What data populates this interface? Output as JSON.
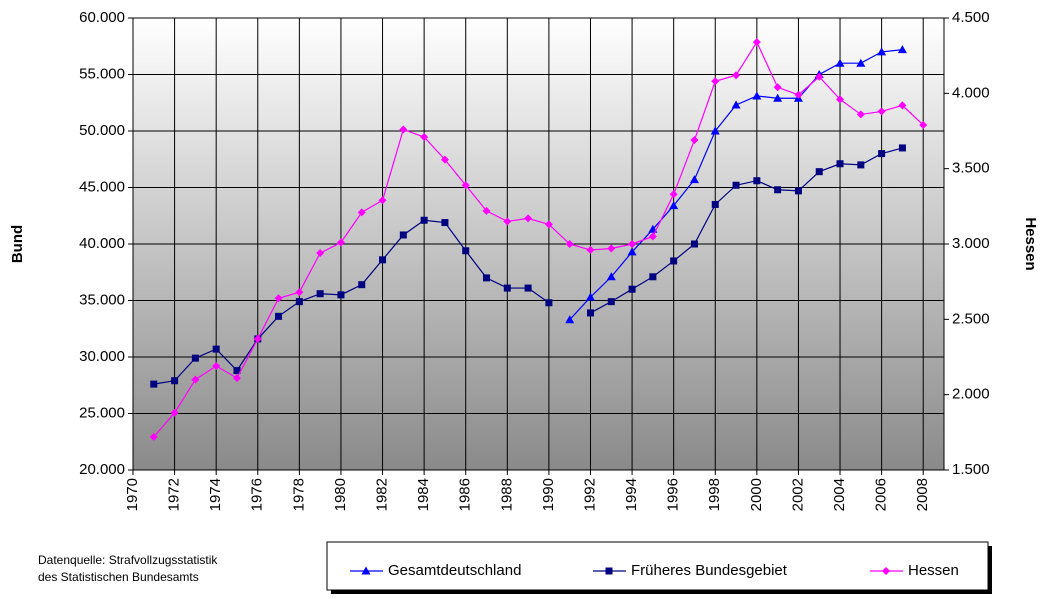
{
  "chart_data": {
    "type": "line",
    "y_label": "Bund",
    "y2_label": "Hessen",
    "note": [
      "Datenquelle: Strafvollzugsstatistik",
      "des Statistischen Bundesamts"
    ],
    "x": [
      1971,
      1972,
      1973,
      1974,
      1975,
      1976,
      1977,
      1978,
      1979,
      1980,
      1981,
      1982,
      1983,
      1984,
      1985,
      1986,
      1987,
      1988,
      1989,
      1990,
      1991,
      1992,
      1993,
      1994,
      1995,
      1996,
      1997,
      1998,
      1999,
      2000,
      2001,
      2002,
      2003,
      2004,
      2005,
      2006,
      2007,
      2008
    ],
    "xlim": [
      1970,
      2009
    ],
    "xticks": [
      1970,
      1972,
      1974,
      1976,
      1978,
      1980,
      1982,
      1984,
      1986,
      1988,
      1990,
      1992,
      1994,
      1996,
      1998,
      2000,
      2002,
      2004,
      2006,
      2008
    ],
    "ylim": [
      20000,
      60000
    ],
    "yticks": [
      {
        "value": 20000,
        "label": "20.000"
      },
      {
        "value": 25000,
        "label": "25.000"
      },
      {
        "value": 30000,
        "label": "30.000"
      },
      {
        "value": 35000,
        "label": "35.000"
      },
      {
        "value": 40000,
        "label": "40.000"
      },
      {
        "value": 45000,
        "label": "45.000"
      },
      {
        "value": 50000,
        "label": "50.000"
      },
      {
        "value": 55000,
        "label": "55.000"
      },
      {
        "value": 60000,
        "label": "60.000"
      }
    ],
    "y2lim": [
      1500,
      4500
    ],
    "y2ticks": [
      {
        "value": 1500,
        "label": "1.500"
      },
      {
        "value": 2000,
        "label": "2.000"
      },
      {
        "value": 2500,
        "label": "2.500"
      },
      {
        "value": 3000,
        "label": "3.000"
      },
      {
        "value": 3500,
        "label": "3.500"
      },
      {
        "value": 4000,
        "label": "4.000"
      },
      {
        "value": 4500,
        "label": "4.500"
      }
    ],
    "grid": true,
    "series": [
      {
        "name": "Gesamtdeutschland",
        "color": "#0000ff",
        "marker": "triangle",
        "values": [
          null,
          null,
          null,
          null,
          null,
          null,
          null,
          null,
          null,
          null,
          null,
          null,
          null,
          null,
          null,
          null,
          null,
          null,
          null,
          null,
          33300,
          35300,
          37100,
          39300,
          41300,
          43400,
          45700,
          50000,
          52300,
          53100,
          52900,
          52900,
          55000,
          56000,
          56000,
          57000,
          57200,
          null
        ]
      },
      {
        "name": "Früheres Bundesgebiet",
        "color": "#000080",
        "marker": "square",
        "values": [
          27600,
          27900,
          29900,
          30700,
          28800,
          31600,
          33600,
          34900,
          35600,
          35500,
          36400,
          38600,
          40800,
          42100,
          41900,
          39400,
          37000,
          36100,
          36100,
          34800,
          null,
          33900,
          34900,
          36000,
          37100,
          38500,
          40000,
          43500,
          45200,
          45600,
          44800,
          44700,
          46400,
          47100,
          47000,
          48000,
          48500,
          null
        ]
      },
      {
        "name": "Hessen",
        "color": "#ff00ff",
        "marker": "diamond",
        "axis": "y2",
        "values": [
          1720,
          1880,
          2100,
          2190,
          2110,
          2370,
          2640,
          2680,
          2940,
          3010,
          3210,
          3290,
          3760,
          3710,
          3560,
          3390,
          3220,
          3150,
          3170,
          3130,
          3000,
          2960,
          2970,
          3000,
          3050,
          3330,
          3690,
          4080,
          4120,
          4340,
          4040,
          3990,
          4110,
          3960,
          3860,
          3880,
          3920,
          3790
        ]
      }
    ]
  }
}
